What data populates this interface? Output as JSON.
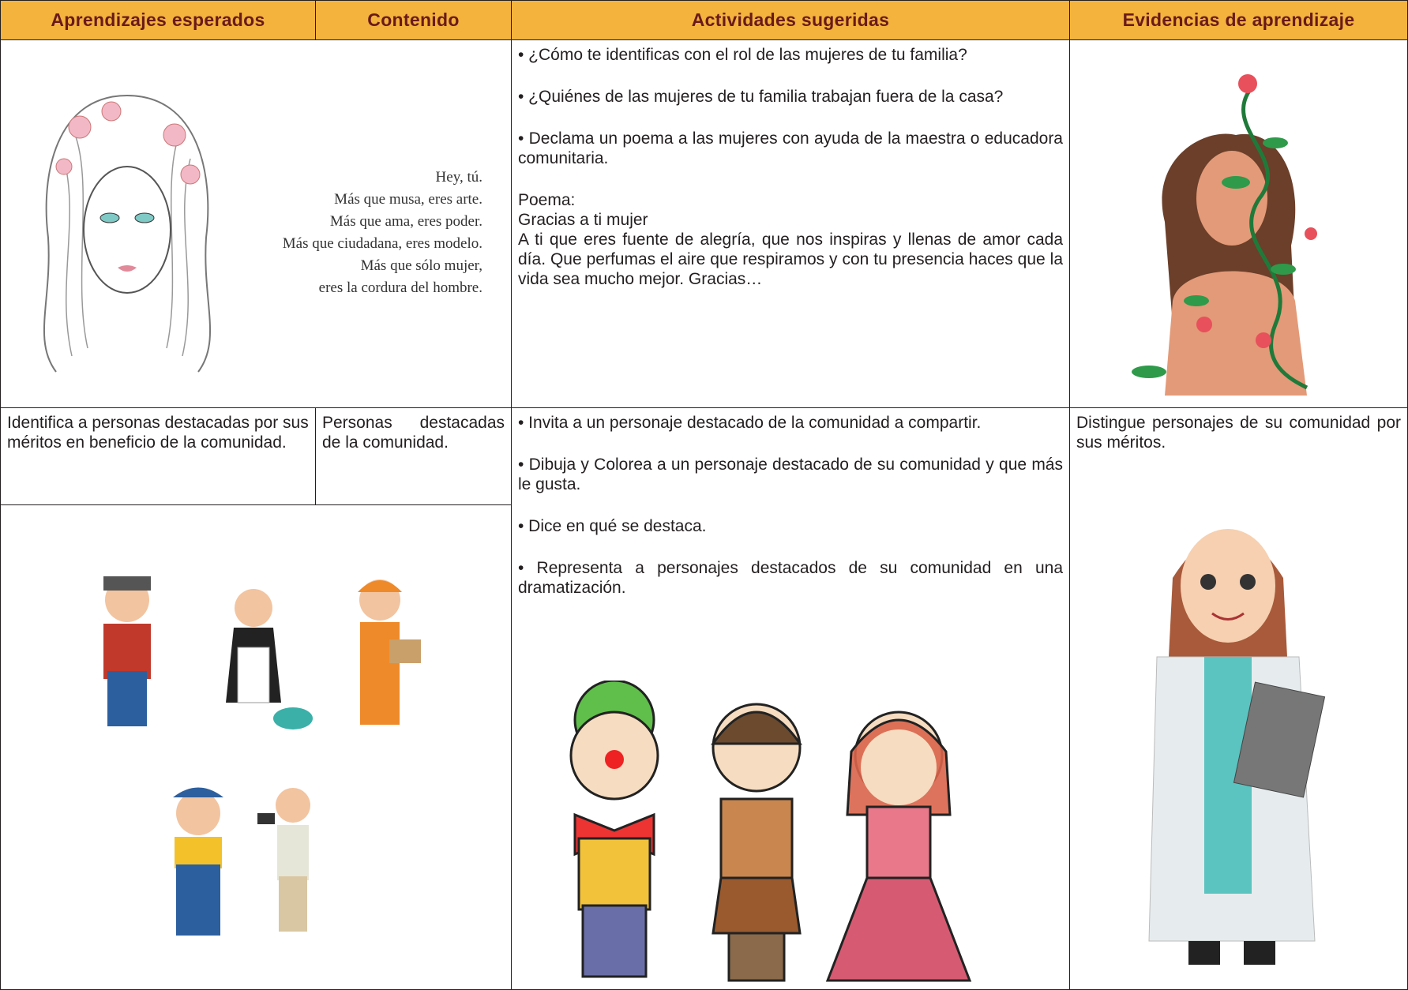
{
  "header": {
    "columns": [
      "Aprendizajes esperados",
      "Contenido",
      "Actividades sugeridas",
      "Evidencias de aprendizaje"
    ]
  },
  "section_1": {
    "poem": [
      "Hey, tú.",
      "Más que musa, eres arte.",
      "Más que ama, eres poder.",
      "Más que ciudadana, eres modelo.",
      "Más que sólo mujer,",
      "eres la cordura del hombre."
    ],
    "activities": [
      "• ¿Cómo te identificas con el rol de las mujeres de tu familia?",
      "• ¿Quiénes de las mujeres de tu familia trabajan fuera de la casa?",
      "• Declama un poema a las mujeres con ayuda de la maestra o educadora comunitaria."
    ],
    "poem_label": "Poema:",
    "poem_title": "Gracias a ti mujer",
    "poem_text": "A ti que eres fuente de alegría, que nos inspiras y llenas de amor cada día. Que perfumas el aire que respiramos y con tu presencia haces que la vida sea mucho mejor. Gracias…"
  },
  "section_2": {
    "learning": "Identifica a personas destacadas por sus méritos en beneficio de la comunidad.",
    "content": "Personas destacadas de la comunidad.",
    "activities": [
      "• Invita a un personaje destacado de la comunidad a compartir.",
      "• Dibuja y Colorea a un personaje destacado de su comunidad y que más le gusta.",
      "• Dice en qué se destaca.",
      "• Representa a personajes destacados de su comunidad en una dramatización."
    ],
    "evidence": "Distingue personajes de su comunidad por sus méritos."
  }
}
